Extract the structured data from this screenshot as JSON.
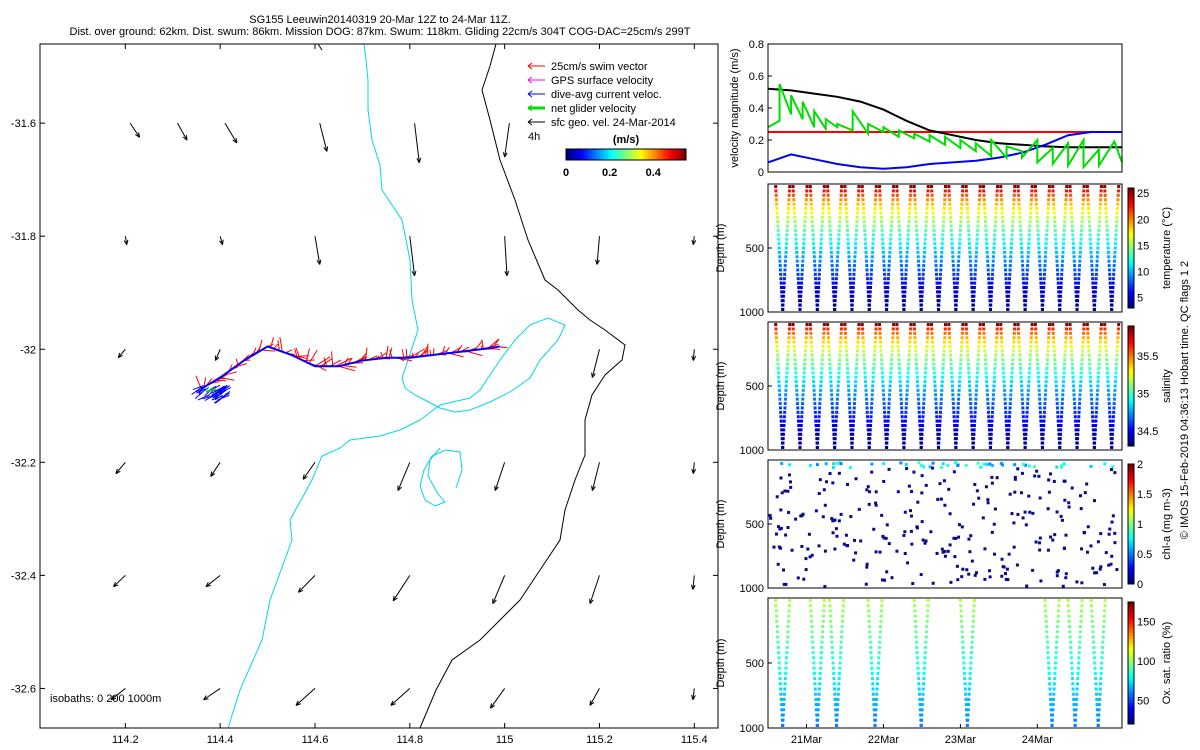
{
  "header": {
    "line1": "SG155 Leeuwin20140319 20-Mar 12Z to 24-Mar 11Z.",
    "line2": "Dist. over ground: 62km. Dist. swum: 86km. Mission DOG: 87km. Swum: 118km. Gliding 22cm/s 304T COG-DAC=25cm/s 299T"
  },
  "footer_credit": "© IMOS 15-Feb-2019 04:36:13 Hobart time. QC flags 1  2",
  "chart_data": [
    {
      "type": "scatter",
      "title": "map",
      "xlim": [
        114.02,
        115.45
      ],
      "ylim": [
        -32.67,
        -31.46
      ],
      "xticks": [
        114.2,
        114.4,
        114.6,
        114.8,
        115,
        115.2,
        115.4
      ],
      "xtick_labels": [
        "114.2",
        "114.4",
        "114.6",
        "114.8",
        "115",
        "115.2",
        "115.4"
      ],
      "yticks": [
        -31.6,
        -31.8,
        -32,
        -32.2,
        -32.4,
        -32.6
      ],
      "ytick_labels": [
        "-31.6",
        "-31.8",
        "-32",
        "-32.2",
        "-32.4",
        "-32.6"
      ],
      "legend": [
        {
          "label": "25cm/s swim vector",
          "color": "#ff0000"
        },
        {
          "label": "GPS surface velocity",
          "color": "#ff00ff"
        },
        {
          "label": "dive-avg current veloc.",
          "color": "#0000ff"
        },
        {
          "label": "net glider velocity",
          "color": "#00dd00"
        },
        {
          "label": "sfc geo. vel. 24-Mar-2014",
          "color": "#000000"
        }
      ],
      "legend_note": "4h",
      "colorbar": {
        "title": "(m/s)",
        "ticks": [
          "0",
          "0.2",
          "0.4"
        ],
        "range": [
          0,
          0.55
        ]
      },
      "isobath_label": "isobaths: 0   200  1000m",
      "track": [
        [
          114.36,
          -32.07
        ],
        [
          114.4,
          -32.05
        ],
        [
          114.45,
          -32.02
        ],
        [
          114.5,
          -31.995
        ],
        [
          114.55,
          -32.01
        ],
        [
          114.6,
          -32.03
        ],
        [
          114.65,
          -32.03
        ],
        [
          114.7,
          -32.02
        ],
        [
          114.75,
          -32.015
        ],
        [
          114.8,
          -32.015
        ],
        [
          114.85,
          -32.01
        ],
        [
          114.9,
          -32.005
        ],
        [
          114.95,
          -32.0
        ],
        [
          114.99,
          -31.995
        ]
      ],
      "geo_vectors": [
        [
          114.21,
          -31.6,
          0.02,
          -0.025
        ],
        [
          114.31,
          -31.6,
          0.02,
          -0.03
        ],
        [
          114.41,
          -31.6,
          0.025,
          -0.035
        ],
        [
          114.61,
          -31.6,
          0.015,
          -0.05
        ],
        [
          114.81,
          -31.6,
          0.01,
          -0.07
        ],
        [
          115.01,
          -31.6,
          -0.01,
          -0.06
        ],
        [
          114.2,
          -31.8,
          0.003,
          -0.015
        ],
        [
          114.4,
          -31.8,
          0.005,
          -0.015
        ],
        [
          114.6,
          -31.8,
          0.01,
          -0.05
        ],
        [
          114.8,
          -31.8,
          0.01,
          -0.07
        ],
        [
          115.0,
          -31.8,
          0.005,
          -0.07
        ],
        [
          115.2,
          -31.8,
          -0.005,
          -0.05
        ],
        [
          115.4,
          -31.8,
          -0.002,
          -0.015
        ],
        [
          114.2,
          -32.0,
          -0.015,
          -0.015
        ],
        [
          114.4,
          -32.0,
          -0.01,
          -0.02
        ],
        [
          115.2,
          -32.0,
          -0.015,
          -0.05
        ],
        [
          115.4,
          -32.0,
          -0.002,
          -0.02
        ],
        [
          114.2,
          -32.2,
          -0.02,
          -0.02
        ],
        [
          114.4,
          -32.2,
          -0.02,
          -0.025
        ],
        [
          114.6,
          -32.2,
          -0.025,
          -0.03
        ],
        [
          114.8,
          -32.2,
          -0.025,
          -0.05
        ],
        [
          115.0,
          -32.2,
          -0.02,
          -0.05
        ],
        [
          115.2,
          -32.2,
          -0.015,
          -0.05
        ],
        [
          115.4,
          -32.2,
          -0.002,
          -0.02
        ],
        [
          114.2,
          -32.4,
          -0.025,
          -0.02
        ],
        [
          114.4,
          -32.4,
          -0.03,
          -0.02
        ],
        [
          114.6,
          -32.4,
          -0.035,
          -0.03
        ],
        [
          114.8,
          -32.4,
          -0.035,
          -0.045
        ],
        [
          115.0,
          -32.4,
          -0.025,
          -0.05
        ],
        [
          115.2,
          -32.4,
          -0.02,
          -0.05
        ],
        [
          115.4,
          -32.4,
          -0.003,
          -0.025
        ],
        [
          114.2,
          -32.6,
          -0.03,
          -0.02
        ],
        [
          114.4,
          -32.6,
          -0.035,
          -0.02
        ],
        [
          114.6,
          -32.6,
          -0.04,
          -0.03
        ],
        [
          114.8,
          -32.6,
          -0.04,
          -0.03
        ],
        [
          115.0,
          -32.6,
          -0.03,
          -0.035
        ],
        [
          115.2,
          -32.6,
          -0.02,
          -0.03
        ],
        [
          115.4,
          -32.6,
          -0.003,
          -0.02
        ]
      ]
    },
    {
      "type": "line",
      "ylabel": "velocity magnitude (m/s)",
      "ylim": [
        0,
        0.8
      ],
      "yticks": [
        0,
        0.2,
        0.4,
        0.6,
        0.8
      ],
      "ytick_labels": [
        "0",
        "0.2",
        "0.4",
        "0.6",
        "0.8"
      ],
      "xlim": [
        20.0,
        24.6
      ],
      "series": [
        {
          "name": "swim",
          "color": "#ff0000",
          "x": [
            20.0,
            24.6
          ],
          "y": [
            0.25,
            0.25
          ]
        },
        {
          "name": "sfc geo",
          "color": "#000000",
          "x": [
            20.0,
            20.3,
            20.6,
            20.9,
            21.2,
            21.5,
            21.8,
            22.1,
            22.4,
            22.7,
            23.0,
            23.3,
            23.6,
            23.9,
            24.2,
            24.6
          ],
          "y": [
            0.52,
            0.51,
            0.49,
            0.47,
            0.44,
            0.39,
            0.32,
            0.26,
            0.23,
            0.2,
            0.18,
            0.17,
            0.16,
            0.155,
            0.155,
            0.155
          ]
        },
        {
          "name": "dive-avg current",
          "color": "#0000ff",
          "x": [
            20.0,
            20.3,
            20.6,
            20.9,
            21.2,
            21.5,
            21.8,
            22.1,
            22.4,
            22.7,
            23.0,
            23.3,
            23.6,
            23.9,
            24.2,
            24.6
          ],
          "y": [
            0.06,
            0.11,
            0.08,
            0.05,
            0.03,
            0.02,
            0.03,
            0.05,
            0.06,
            0.07,
            0.09,
            0.12,
            0.17,
            0.23,
            0.25,
            0.25
          ]
        },
        {
          "name": "net glider",
          "color": "#00dd00",
          "x": [
            20.0,
            20.15,
            20.15,
            20.3,
            20.3,
            20.45,
            20.45,
            20.6,
            20.6,
            20.75,
            20.75,
            20.9,
            20.9,
            21.1,
            21.1,
            21.3,
            21.3,
            21.5,
            21.5,
            21.7,
            21.7,
            21.9,
            21.9,
            22.1,
            22.1,
            22.3,
            22.3,
            22.5,
            22.5,
            22.7,
            22.7,
            22.9,
            22.9,
            23.1,
            23.1,
            23.3,
            23.3,
            23.5,
            23.5,
            23.7,
            23.7,
            23.9,
            23.9,
            24.1,
            24.1,
            24.3,
            24.3,
            24.5,
            24.6
          ],
          "y": [
            0.28,
            0.32,
            0.55,
            0.36,
            0.48,
            0.33,
            0.44,
            0.28,
            0.38,
            0.27,
            0.33,
            0.28,
            0.3,
            0.26,
            0.38,
            0.24,
            0.3,
            0.25,
            0.28,
            0.22,
            0.26,
            0.21,
            0.24,
            0.19,
            0.23,
            0.17,
            0.22,
            0.15,
            0.2,
            0.13,
            0.18,
            0.1,
            0.2,
            0.09,
            0.16,
            0.13,
            0.09,
            0.2,
            0.06,
            0.15,
            0.05,
            0.18,
            0.04,
            0.2,
            0.03,
            0.14,
            0.04,
            0.19,
            0.06
          ]
        }
      ]
    },
    {
      "type": "scatter",
      "ylabel": "Depth (m)",
      "cblabel": "temperature (°C)",
      "yticks": [
        500,
        1000
      ],
      "ytick_labels": [
        "500",
        "1000"
      ],
      "cbticks": [
        "5",
        "10",
        "15",
        "20",
        "25"
      ],
      "cbrange": [
        3,
        26
      ],
      "ylim": [
        0,
        1000
      ],
      "dives": 20
    },
    {
      "type": "scatter",
      "ylabel": "Depth (m)",
      "cblabel": "salinity",
      "yticks": [
        500,
        1000
      ],
      "ytick_labels": [
        "500",
        "1000"
      ],
      "cbticks": [
        "34.5",
        "35",
        "35.5"
      ],
      "cbrange": [
        34.3,
        35.9
      ],
      "ylim": [
        0,
        1000
      ],
      "dives": 20
    },
    {
      "type": "scatter",
      "ylabel": "Depth (m)",
      "cblabel": "chl-a (mg m-3)",
      "yticks": [
        500,
        1000
      ],
      "ytick_labels": [
        "500",
        "1000"
      ],
      "cbticks": [
        "0",
        "0.5",
        "1",
        "1.5",
        "2"
      ],
      "cbrange": [
        0,
        2
      ],
      "ylim": [
        0,
        1000
      ]
    },
    {
      "type": "scatter",
      "ylabel": "Depth (m)",
      "cblabel": "Ox. sat. ratio (%)",
      "yticks": [
        500,
        1000
      ],
      "ytick_labels": [
        "500",
        "1000"
      ],
      "cbticks": [
        "50",
        "100",
        "150"
      ],
      "cbrange": [
        20,
        175
      ],
      "ylim": [
        0,
        1000
      ],
      "xticks": [
        20.5,
        21.5,
        22.5,
        23.5
      ],
      "xtick_labels": [
        "21Mar",
        "22Mar",
        "23Mar",
        "24Mar"
      ],
      "xlim": [
        20.0,
        24.6
      ]
    }
  ]
}
